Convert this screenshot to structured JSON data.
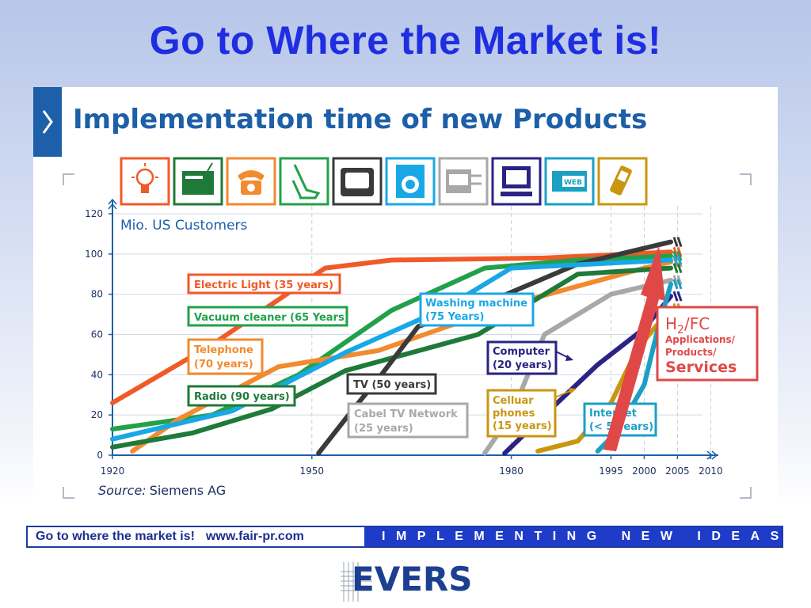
{
  "slide": {
    "title": "Go to Where the Market is!",
    "footer_left_text": "Go to where the market is!",
    "footer_url": "www.fair-pr.com",
    "footer_right_text": "IMPLEMENTING NEW IDEAS",
    "logo_text": "EVERS"
  },
  "colors": {
    "title": "#1f2ee0",
    "header_blue": "#1d5fa8",
    "electric": "#f05a28",
    "vacuum": "#22a14a",
    "telephone": "#f28a2e",
    "radio": "#1f7a3a",
    "tv": "#3a3a3a",
    "washing": "#19a8e6",
    "cable": "#a8a8a8",
    "computer": "#2a2385",
    "cellular": "#c89610",
    "internet": "#1ba0c4",
    "h2fc": "#e04848"
  },
  "icons": [
    "light-bulb-icon",
    "radio-set-icon",
    "telephone-icon",
    "vacuum-cleaner-icon",
    "tv-icon",
    "washing-machine-icon",
    "cable-box-icon",
    "computer-icon",
    "web-icon",
    "cell-phone-icon"
  ],
  "chart_data": {
    "type": "line",
    "title": "Implementation time of new Products",
    "ylabel": "Mio. US Customers",
    "xlabel": "",
    "source_label": "Source:",
    "source_value": "Siemens AG",
    "ylim": [
      0,
      120
    ],
    "xlim": [
      1920,
      2010
    ],
    "yticks": [
      0,
      20,
      40,
      60,
      80,
      100,
      120
    ],
    "xticks": [
      1920,
      1950,
      1980,
      1995,
      2000,
      2005,
      2010
    ],
    "grid": true,
    "series": [
      {
        "name": "Electric Light (35 years)",
        "color_key": "electric",
        "points": [
          [
            1920,
            26
          ],
          [
            1935,
            55
          ],
          [
            1952,
            93
          ],
          [
            1962,
            97
          ],
          [
            1985,
            98
          ],
          [
            2004,
            101
          ]
        ]
      },
      {
        "name": "Vacuum cleaner (65 Years)",
        "color_key": "vacuum",
        "points": [
          [
            1920,
            13
          ],
          [
            1935,
            20
          ],
          [
            1948,
            40
          ],
          [
            1962,
            72
          ],
          [
            1976,
            93
          ],
          [
            1990,
            97
          ],
          [
            2004,
            99
          ]
        ]
      },
      {
        "name": "Telephone (70 years)",
        "color_key": "telephone",
        "points": [
          [
            1923,
            2
          ],
          [
            1930,
            18
          ],
          [
            1945,
            44
          ],
          [
            1960,
            52
          ],
          [
            1980,
            75
          ],
          [
            2000,
            93
          ],
          [
            2004,
            96
          ]
        ]
      },
      {
        "name": "Radio (90 years)",
        "color_key": "radio",
        "points": [
          [
            1920,
            4
          ],
          [
            1932,
            11
          ],
          [
            1944,
            23
          ],
          [
            1955,
            42
          ],
          [
            1975,
            60
          ],
          [
            1990,
            90
          ],
          [
            2004,
            93
          ]
        ]
      },
      {
        "name": "TV (50 years)",
        "color_key": "tv",
        "points": [
          [
            1951,
            1
          ],
          [
            1956,
            22
          ],
          [
            1960,
            38
          ],
          [
            1966,
            64
          ],
          [
            1975,
            74
          ],
          [
            1990,
            95
          ],
          [
            2004,
            106
          ]
        ]
      },
      {
        "name": "Washing machine (75 Years)",
        "color_key": "washing",
        "points": [
          [
            1920,
            8
          ],
          [
            1938,
            22
          ],
          [
            1955,
            51
          ],
          [
            1970,
            73
          ],
          [
            1980,
            93
          ],
          [
            2004,
            97
          ]
        ]
      },
      {
        "name": "Cabel TV Network (25 years)",
        "color_key": "cable",
        "points": [
          [
            1976,
            1
          ],
          [
            1980,
            20
          ],
          [
            1985,
            60
          ],
          [
            1995,
            80
          ],
          [
            2004,
            87
          ]
        ]
      },
      {
        "name": "Computer (20 years)",
        "color_key": "computer",
        "points": [
          [
            1979,
            1
          ],
          [
            1985,
            20
          ],
          [
            1993,
            45
          ],
          [
            2000,
            63
          ],
          [
            2004,
            79
          ]
        ]
      },
      {
        "name": "Cellular phones (15 years)",
        "color_key": "cellular",
        "points": [
          [
            1984,
            2
          ],
          [
            1990,
            7
          ],
          [
            1995,
            26
          ],
          [
            1999,
            53
          ],
          [
            2004,
            73
          ]
        ]
      },
      {
        "name": "Internet (< 5 years)",
        "color_key": "internet",
        "points": [
          [
            1993,
            2
          ],
          [
            1996,
            12
          ],
          [
            2000,
            35
          ],
          [
            2002,
            62
          ],
          [
            2004,
            85
          ]
        ]
      }
    ],
    "labels": {
      "electric": "Electric Light (35 years)",
      "vacuum": "Vacuum cleaner (65 Years)",
      "telephone_1": "Telephone",
      "telephone_2": "(70 years)",
      "radio": "Radio (90 years)",
      "tv": "TV (50 years)",
      "washing_1": "Washing machine",
      "washing_2": "(75 Years)",
      "cable_1": "Cabel TV Network",
      "cable_2": "(25 years)",
      "computer_1": "Computer",
      "computer_2": "(20 years)",
      "cellular_1": "Celluar",
      "cellular_2": "phones",
      "cellular_3": "(15 years)",
      "internet_1": "Internet",
      "internet_2": "(< 5 years)"
    },
    "annotation": {
      "h2": "H",
      "h2_sub": "2",
      "h2_rest": "/FC",
      "line1": "Applications/",
      "line2": "Products/",
      "line3": "Services"
    }
  }
}
